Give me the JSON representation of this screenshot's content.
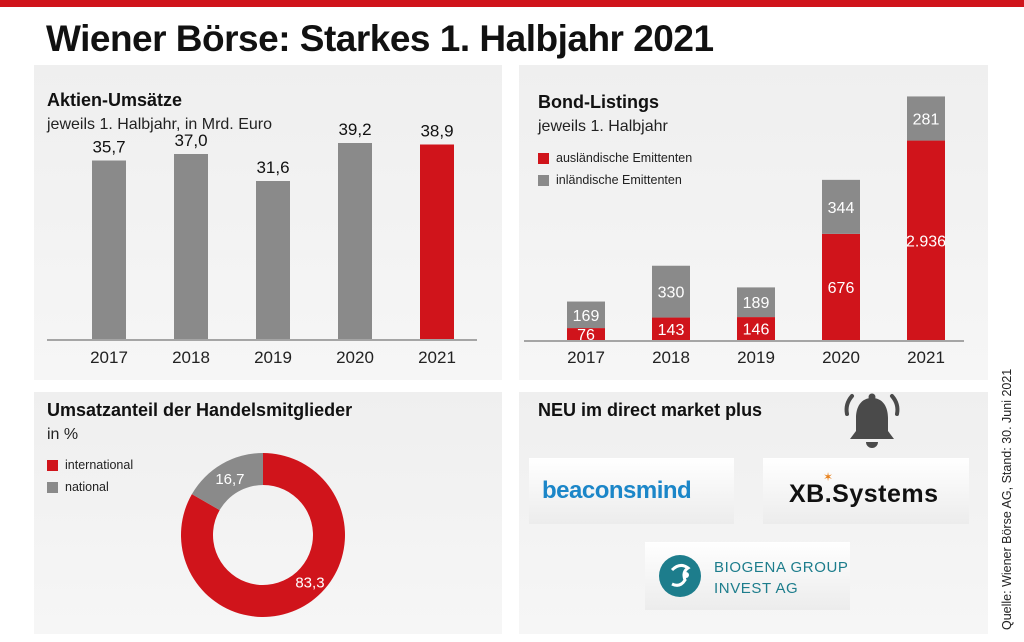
{
  "title": "Wiener Börse: Starkes 1. Halbjahr 2021",
  "colors": {
    "accent": "#d0141b",
    "gray": "#8a8a8a"
  },
  "source": "Quelle: Wiener Börse AG, Stand: 30. Juni 2021",
  "aktien": {
    "title": "Aktien-Umsätze",
    "subtitle": "jeweils 1. Halbjahr, in Mrd. Euro"
  },
  "bonds": {
    "title": "Bond-Listings",
    "subtitle": "jeweils 1. Halbjahr",
    "legend": [
      "ausländische Emittenten",
      "inländische Emittenten"
    ]
  },
  "umsatz": {
    "title": "Umsatzanteil der Handelsmitglieder",
    "subtitle": "in %",
    "legend": [
      "international",
      "national"
    ]
  },
  "neu": {
    "title": "NEU im direct market plus",
    "bell_icon": "bell-icon",
    "logos": {
      "beacon": "beaconsmind",
      "xb": "XB.Systems",
      "biogena_line1": "BIOGENA GROUP",
      "biogena_line2": "INVEST AG"
    }
  },
  "chart_data": [
    {
      "type": "bar",
      "title": "Aktien-Umsätze",
      "subtitle": "jeweils 1. Halbjahr, in Mrd. Euro",
      "categories": [
        "2017",
        "2018",
        "2019",
        "2020",
        "2021"
      ],
      "values": [
        35.7,
        37.0,
        31.6,
        39.2,
        38.9
      ],
      "labels": [
        "35,7",
        "37,0",
        "31,6",
        "39,2",
        "38,9"
      ],
      "highlight_index": 4,
      "ylim": [
        0,
        40
      ]
    },
    {
      "type": "bar",
      "stacked": true,
      "title": "Bond-Listings",
      "subtitle": "jeweils 1. Halbjahr",
      "categories": [
        "2017",
        "2018",
        "2019",
        "2020",
        "2021"
      ],
      "series": [
        {
          "name": "ausländische Emittenten",
          "values": [
            76,
            143,
            146,
            676,
            2936
          ],
          "labels": [
            "76",
            "143",
            "146",
            "676",
            "2.936"
          ]
        },
        {
          "name": "inländische Emittenten",
          "values": [
            169,
            330,
            189,
            344,
            281
          ],
          "labels": [
            "169",
            "330",
            "189",
            "344",
            "281"
          ]
        }
      ]
    },
    {
      "type": "pie",
      "donut": true,
      "title": "Umsatzanteil der Handelsmitglieder",
      "subtitle": "in %",
      "categories": [
        "international",
        "national"
      ],
      "values": [
        83.3,
        16.7
      ],
      "labels": [
        "83,3",
        "16,7"
      ]
    }
  ]
}
